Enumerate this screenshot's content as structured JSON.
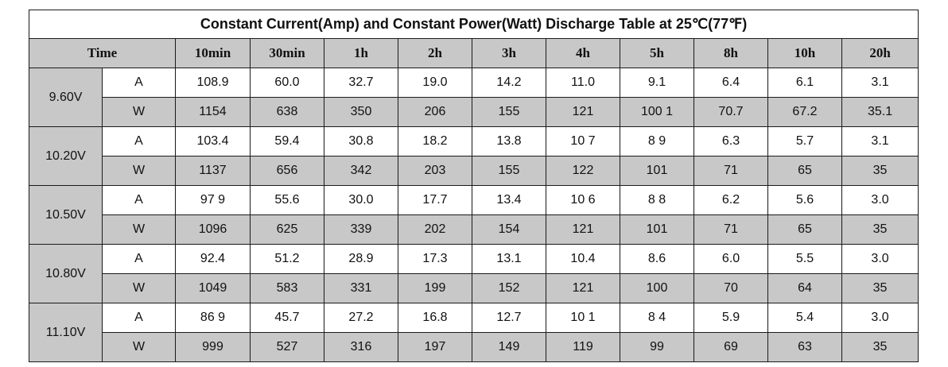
{
  "table": {
    "title": "Constant Current(Amp) and Constant Power(Watt) Discharge Table at 25℃(77℉)",
    "time_label": "Time",
    "columns": [
      "10min",
      "30min",
      "1h",
      "2h",
      "3h",
      "4h",
      "5h",
      "8h",
      "10h",
      "20h"
    ],
    "groups": [
      {
        "voltage": "9.60V",
        "rows": [
          {
            "unit": "A",
            "values": [
              "108.9",
              "60.0",
              "32.7",
              "19.0",
              "14.2",
              "11.0",
              "9.1",
              "6.4",
              "6.1",
              "3.1"
            ]
          },
          {
            "unit": "W",
            "values": [
              "1154",
              "638",
              "350",
              "206",
              "155",
              "121",
              "100 1",
              "70.7",
              "67.2",
              "35.1"
            ]
          }
        ]
      },
      {
        "voltage": "10.20V",
        "rows": [
          {
            "unit": "A",
            "values": [
              "103.4",
              "59.4",
              "30.8",
              "18.2",
              "13.8",
              "10 7",
              "8 9",
              "6.3",
              "5.7",
              "3.1"
            ]
          },
          {
            "unit": "W",
            "values": [
              "1137",
              "656",
              "342",
              "203",
              "155",
              "122",
              "101",
              "71",
              "65",
              "35"
            ]
          }
        ]
      },
      {
        "voltage": "10.50V",
        "rows": [
          {
            "unit": "A",
            "values": [
              "97 9",
              "55.6",
              "30.0",
              "17.7",
              "13.4",
              "10 6",
              "8 8",
              "6.2",
              "5.6",
              "3.0"
            ]
          },
          {
            "unit": "W",
            "values": [
              "1096",
              "625",
              "339",
              "202",
              "154",
              "121",
              "101",
              "71",
              "65",
              "35"
            ]
          }
        ]
      },
      {
        "voltage": "10.80V",
        "rows": [
          {
            "unit": "A",
            "values": [
              "92.4",
              "51.2",
              "28.9",
              "17.3",
              "13.1",
              "10.4",
              "8.6",
              "6.0",
              "5.5",
              "3.0"
            ]
          },
          {
            "unit": "W",
            "values": [
              "1049",
              "583",
              "331",
              "199",
              "152",
              "121",
              "100",
              "70",
              "64",
              "35"
            ]
          }
        ]
      },
      {
        "voltage": "11.10V",
        "rows": [
          {
            "unit": "A",
            "values": [
              "86 9",
              "45.7",
              "27.2",
              "16.8",
              "12.7",
              "10 1",
              "8 4",
              "5.9",
              "5.4",
              "3.0"
            ]
          },
          {
            "unit": "W",
            "values": [
              "999",
              "527",
              "316",
              "197",
              "149",
              "119",
              "99",
              "69",
              "63",
              "35"
            ]
          }
        ]
      }
    ]
  }
}
